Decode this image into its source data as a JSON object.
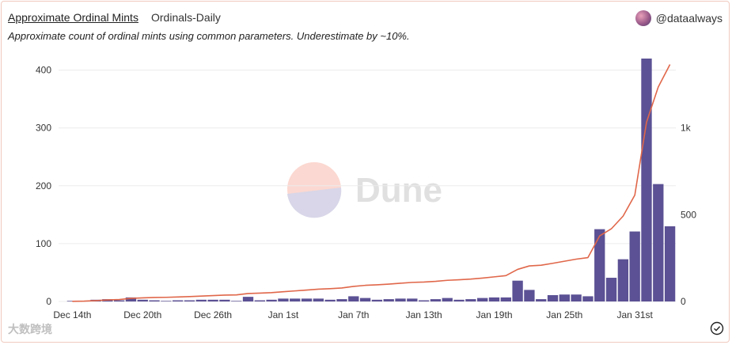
{
  "header": {
    "title": "Approximate Ordinal Mints",
    "subtitle": "Ordinals-Daily",
    "author": "@dataalways"
  },
  "description": "Approximate count of ordinal mints using common parameters. Underestimate by ~10%.",
  "watermark": "Dune",
  "footer_watermark": "大数跨境",
  "colors": {
    "bar": "#5b5194",
    "line": "#e0674a",
    "grid": "#ececec",
    "tick": "#333333"
  },
  "chart_data": {
    "type": "bar+line",
    "x_tick_labels": [
      "Dec 14th",
      "Dec 20th",
      "Dec 26th",
      "Jan 1st",
      "Jan 7th",
      "Jan 13th",
      "Jan 19th",
      "Jan 25th",
      "Jan 31st"
    ],
    "left_axis": {
      "ylim": [
        0,
        420
      ],
      "ticks": [
        "0",
        "100",
        "200",
        "300",
        "400"
      ]
    },
    "right_axis": {
      "ylim": [
        0,
        1400
      ],
      "ticks": [
        "0",
        "500",
        "1k"
      ]
    },
    "series": [
      {
        "type": "bar",
        "axis": "left",
        "values": [
          1,
          1,
          3,
          4,
          2,
          7,
          3,
          2,
          1,
          2,
          2,
          3,
          3,
          3,
          1,
          8,
          2,
          3,
          5,
          5,
          5,
          5,
          3,
          4,
          9,
          6,
          3,
          4,
          5,
          5,
          2,
          4,
          6,
          3,
          4,
          6,
          7,
          7,
          36,
          20,
          4,
          11,
          12,
          12,
          9,
          125,
          41,
          73,
          121,
          420,
          203,
          130
        ]
      },
      {
        "type": "line",
        "axis": "right",
        "values": [
          1,
          2,
          5,
          9,
          11,
          18,
          21,
          23,
          24,
          26,
          28,
          31,
          34,
          37,
          38,
          46,
          48,
          51,
          56,
          61,
          66,
          71,
          74,
          78,
          87,
          93,
          96,
          100,
          105,
          110,
          112,
          116,
          122,
          125,
          129,
          135,
          142,
          149,
          185,
          205,
          209,
          220,
          232,
          244,
          253,
          378,
          419,
          492,
          613,
          1033,
          1236,
          1366
        ]
      }
    ]
  }
}
